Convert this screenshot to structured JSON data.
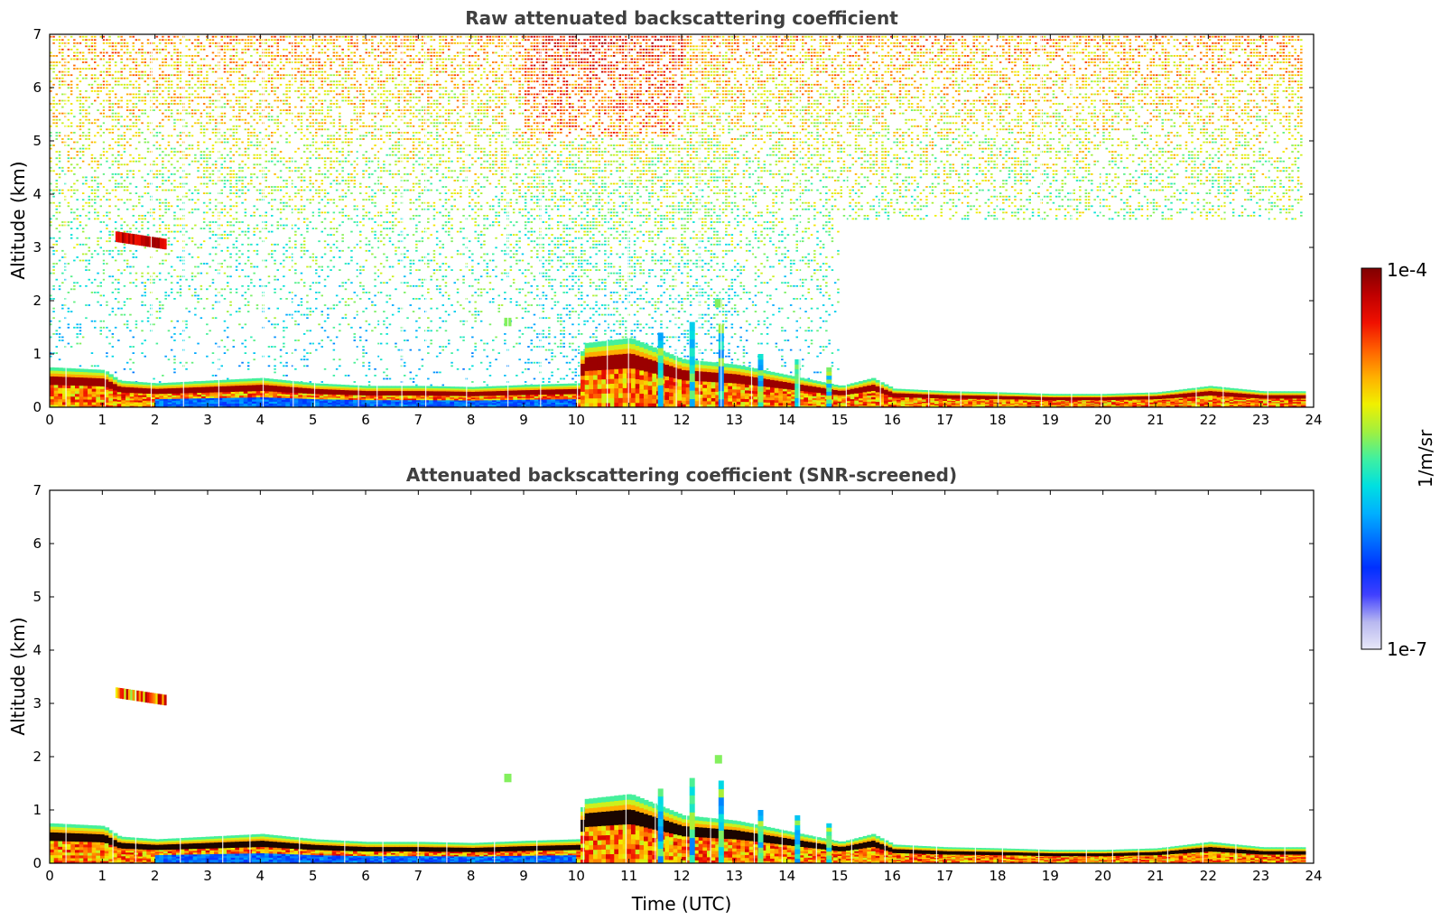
{
  "chart_data": [
    {
      "type": "heatmap",
      "title": "Raw attenuated backscattering coefficient",
      "xlabel": "",
      "ylabel": "Altitude (km)",
      "xlim": [
        0,
        24
      ],
      "ylim": [
        0,
        7
      ],
      "xticks": [
        "0",
        "1",
        "2",
        "3",
        "4",
        "5",
        "6",
        "7",
        "8",
        "9",
        "10",
        "11",
        "12",
        "13",
        "14",
        "15",
        "16",
        "17",
        "18",
        "19",
        "20",
        "21",
        "22",
        "23",
        "24"
      ],
      "yticks": [
        "0",
        "1",
        "2",
        "3",
        "4",
        "5",
        "6",
        "7"
      ],
      "screened": false,
      "boundary_layer_top_km": [
        {
          "t": 0,
          "z": 0.75
        },
        {
          "t": 1,
          "z": 0.7
        },
        {
          "t": 1.3,
          "z": 0.5
        },
        {
          "t": 2,
          "z": 0.45
        },
        {
          "t": 3,
          "z": 0.5
        },
        {
          "t": 4,
          "z": 0.55
        },
        {
          "t": 5,
          "z": 0.45
        },
        {
          "t": 6,
          "z": 0.4
        },
        {
          "t": 7,
          "z": 0.4
        },
        {
          "t": 8,
          "z": 0.38
        },
        {
          "t": 9,
          "z": 0.42
        },
        {
          "t": 10,
          "z": 0.45
        },
        {
          "t": 10.1,
          "z": 1.2
        },
        {
          "t": 11,
          "z": 1.3
        },
        {
          "t": 12,
          "z": 0.9
        },
        {
          "t": 13,
          "z": 0.8
        },
        {
          "t": 14,
          "z": 0.6
        },
        {
          "t": 15,
          "z": 0.4
        },
        {
          "t": 15.6,
          "z": 0.55
        },
        {
          "t": 16,
          "z": 0.35
        },
        {
          "t": 17,
          "z": 0.3
        },
        {
          "t": 18,
          "z": 0.28
        },
        {
          "t": 19,
          "z": 0.25
        },
        {
          "t": 20,
          "z": 0.25
        },
        {
          "t": 21,
          "z": 0.28
        },
        {
          "t": 22,
          "z": 0.4
        },
        {
          "t": 23,
          "z": 0.3
        },
        {
          "t": 23.8,
          "z": 0.3
        }
      ],
      "features": [
        {
          "name": "elevated aerosol layer",
          "t_start": 1.25,
          "t_end": 2.2,
          "z_km": 3.1
        },
        {
          "name": "small plume",
          "t": 8.7,
          "z_km": 1.6
        },
        {
          "name": "plume",
          "t": 12.7,
          "z_km": 1.95
        }
      ]
    },
    {
      "type": "heatmap",
      "title": "Attenuated backscattering coefficient (SNR-screened)",
      "xlabel": "Time (UTC)",
      "ylabel": "Altitude (km)",
      "xlim": [
        0,
        24
      ],
      "ylim": [
        0,
        7
      ],
      "xticks": [
        "0",
        "1",
        "2",
        "3",
        "4",
        "5",
        "6",
        "7",
        "8",
        "9",
        "10",
        "11",
        "12",
        "13",
        "14",
        "15",
        "16",
        "17",
        "18",
        "19",
        "20",
        "21",
        "22",
        "23",
        "24"
      ],
      "yticks": [
        "0",
        "1",
        "2",
        "3",
        "4",
        "5",
        "6",
        "7"
      ],
      "screened": true
    }
  ],
  "colorbar": {
    "max_label": "1e-4",
    "min_label": "1e-7",
    "units": "1/m/sr",
    "colormap": [
      "#e8e8f8",
      "#b8b8f0",
      "#4040ff",
      "#0030ff",
      "#0070ff",
      "#00b0ff",
      "#00e0e0",
      "#40f0a0",
      "#a0f040",
      "#f0f000",
      "#ffb000",
      "#ff6000",
      "#f01000",
      "#c00000",
      "#800000"
    ]
  }
}
